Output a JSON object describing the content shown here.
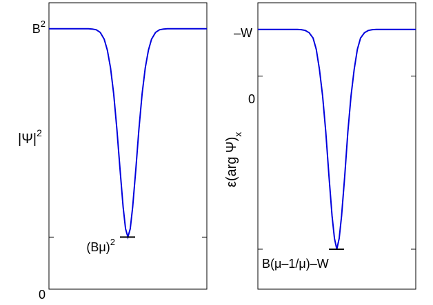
{
  "colors": {
    "curve": "#0000dd"
  },
  "chart_data": [
    {
      "type": "line",
      "ylabel_main": "|Ψ|",
      "ylabel_sup": "2",
      "ylim": [
        0,
        1.1
      ],
      "y_ticks": [
        {
          "value": 1.0,
          "label": "B",
          "sup": "2"
        },
        {
          "value": 0.0,
          "label": "0",
          "sup": ""
        }
      ],
      "minor_ticks": [
        0.2
      ],
      "marker": {
        "value": 0.2,
        "label": "(Bμ)",
        "sup": "2"
      },
      "series": {
        "x": [
          -1.0,
          -0.8,
          -0.6,
          -0.5,
          -0.45,
          -0.4,
          -0.35,
          -0.3,
          -0.26,
          -0.22,
          -0.18,
          -0.14,
          -0.1,
          -0.06,
          -0.03,
          0.0,
          0.03,
          0.06,
          0.1,
          0.14,
          0.18,
          0.22,
          0.26,
          0.3,
          0.35,
          0.4,
          0.45,
          0.5,
          0.6,
          0.8,
          1.0
        ],
        "y": [
          1.0,
          1.0,
          1.0,
          1.0,
          0.999,
          0.996,
          0.986,
          0.96,
          0.918,
          0.85,
          0.75,
          0.615,
          0.46,
          0.315,
          0.232,
          0.2,
          0.232,
          0.315,
          0.46,
          0.615,
          0.75,
          0.85,
          0.918,
          0.96,
          0.986,
          0.996,
          0.999,
          1.0,
          1.0,
          1.0,
          1.0
        ]
      }
    },
    {
      "type": "line",
      "ylabel_main": "ε(arg Ψ)",
      "ylabel_sub": "x",
      "ylim": [
        -1.6,
        0.55
      ],
      "y_ticks": [
        {
          "value": 0.35,
          "label": "–W",
          "sup": ""
        },
        {
          "value": 0.0,
          "label": "0",
          "sup": ""
        }
      ],
      "minor_ticks": [
        -1.3
      ],
      "marker": {
        "value": -1.3,
        "label": "B(μ–1/μ)–W"
      },
      "series": {
        "x": [
          -1.0,
          -0.8,
          -0.6,
          -0.5,
          -0.45,
          -0.4,
          -0.35,
          -0.3,
          -0.26,
          -0.22,
          -0.18,
          -0.14,
          -0.1,
          -0.06,
          -0.03,
          0.0,
          0.03,
          0.06,
          0.1,
          0.14,
          0.18,
          0.22,
          0.26,
          0.3,
          0.35,
          0.4,
          0.45,
          0.5,
          0.6,
          0.8,
          1.0
        ],
        "y": [
          0.35,
          0.35,
          0.35,
          0.35,
          0.348,
          0.342,
          0.325,
          0.285,
          0.2,
          0.05,
          -0.15,
          -0.42,
          -0.75,
          -1.05,
          -1.22,
          -1.3,
          -1.22,
          -1.05,
          -0.75,
          -0.42,
          -0.15,
          0.05,
          0.2,
          0.285,
          0.325,
          0.342,
          0.348,
          0.35,
          0.35,
          0.35,
          0.35
        ]
      }
    }
  ]
}
